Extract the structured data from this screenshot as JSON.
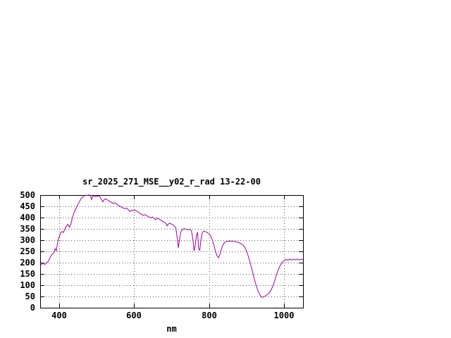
{
  "window": {
    "background": "#ffffff"
  },
  "chart_data": {
    "type": "line",
    "title": "sr_2025_271_MSE__y02_r_rad 13-22-00",
    "xlabel": "nm",
    "ylabel": "",
    "xlim": [
      350,
      1050
    ],
    "ylim": [
      0,
      500
    ],
    "xticks": [
      400,
      600,
      800,
      1000
    ],
    "yticks": [
      0,
      50,
      100,
      150,
      200,
      250,
      300,
      350,
      400,
      450,
      500
    ],
    "grid": true,
    "legend": "none",
    "line_color": "#a000a0",
    "x": [
      350,
      354,
      358,
      362,
      366,
      370,
      374,
      378,
      382,
      386,
      390,
      393,
      396,
      400,
      404,
      408,
      412,
      416,
      420,
      424,
      428,
      432,
      436,
      440,
      444,
      448,
      452,
      456,
      460,
      464,
      468,
      472,
      476,
      480,
      484,
      487,
      490,
      494,
      498,
      502,
      506,
      510,
      514,
      517,
      520,
      524,
      528,
      532,
      536,
      540,
      544,
      548,
      552,
      556,
      560,
      564,
      568,
      572,
      576,
      580,
      584,
      589,
      593,
      597,
      601,
      605,
      609,
      613,
      617,
      621,
      625,
      629,
      633,
      637,
      641,
      645,
      649,
      653,
      657,
      661,
      665,
      669,
      673,
      677,
      681,
      685,
      688,
      691,
      695,
      699,
      703,
      707,
      711,
      715,
      718,
      721,
      725,
      729,
      733,
      737,
      741,
      745,
      749,
      753,
      757,
      760,
      763,
      766,
      769,
      772,
      775,
      778,
      781,
      785,
      789,
      793,
      797,
      801,
      805,
      809,
      813,
      817,
      821,
      825,
      829,
      833,
      837,
      841,
      845,
      850,
      855,
      860,
      865,
      870,
      875,
      880,
      885,
      890,
      895,
      900,
      905,
      910,
      915,
      920,
      925,
      930,
      935,
      940,
      945,
      950,
      955,
      960,
      965,
      970,
      975,
      980,
      985,
      990,
      995,
      1000,
      1005,
      1010,
      1015,
      1020,
      1025,
      1030,
      1035,
      1040,
      1045,
      1050
    ],
    "y": [
      185,
      193,
      198,
      192,
      197,
      203,
      213,
      228,
      238,
      243,
      262,
      252,
      285,
      312,
      330,
      338,
      334,
      350,
      363,
      370,
      357,
      372,
      400,
      422,
      436,
      450,
      463,
      475,
      486,
      492,
      497,
      500,
      498,
      501,
      497,
      480,
      494,
      497,
      492,
      495,
      497,
      489,
      478,
      470,
      479,
      483,
      480,
      475,
      471,
      468,
      463,
      466,
      462,
      457,
      452,
      449,
      445,
      442,
      440,
      442,
      437,
      427,
      433,
      431,
      434,
      430,
      427,
      423,
      417,
      413,
      410,
      413,
      409,
      405,
      402,
      399,
      403,
      396,
      390,
      398,
      395,
      391,
      387,
      383,
      379,
      373,
      363,
      371,
      375,
      372,
      368,
      362,
      355,
      310,
      266,
      302,
      338,
      348,
      351,
      349,
      347,
      346,
      348,
      342,
      300,
      252,
      278,
      320,
      335,
      262,
      255,
      300,
      330,
      340,
      338,
      336,
      331,
      326,
      315,
      298,
      275,
      250,
      230,
      222,
      238,
      262,
      280,
      290,
      293,
      295,
      296,
      295,
      294,
      293,
      291,
      288,
      284,
      278,
      268,
      250,
      225,
      195,
      163,
      130,
      100,
      75,
      57,
      46,
      48,
      53,
      58,
      66,
      79,
      97,
      122,
      150,
      172,
      190,
      202,
      210,
      215,
      211,
      216,
      212,
      215,
      212,
      216,
      212,
      215,
      213
    ]
  }
}
